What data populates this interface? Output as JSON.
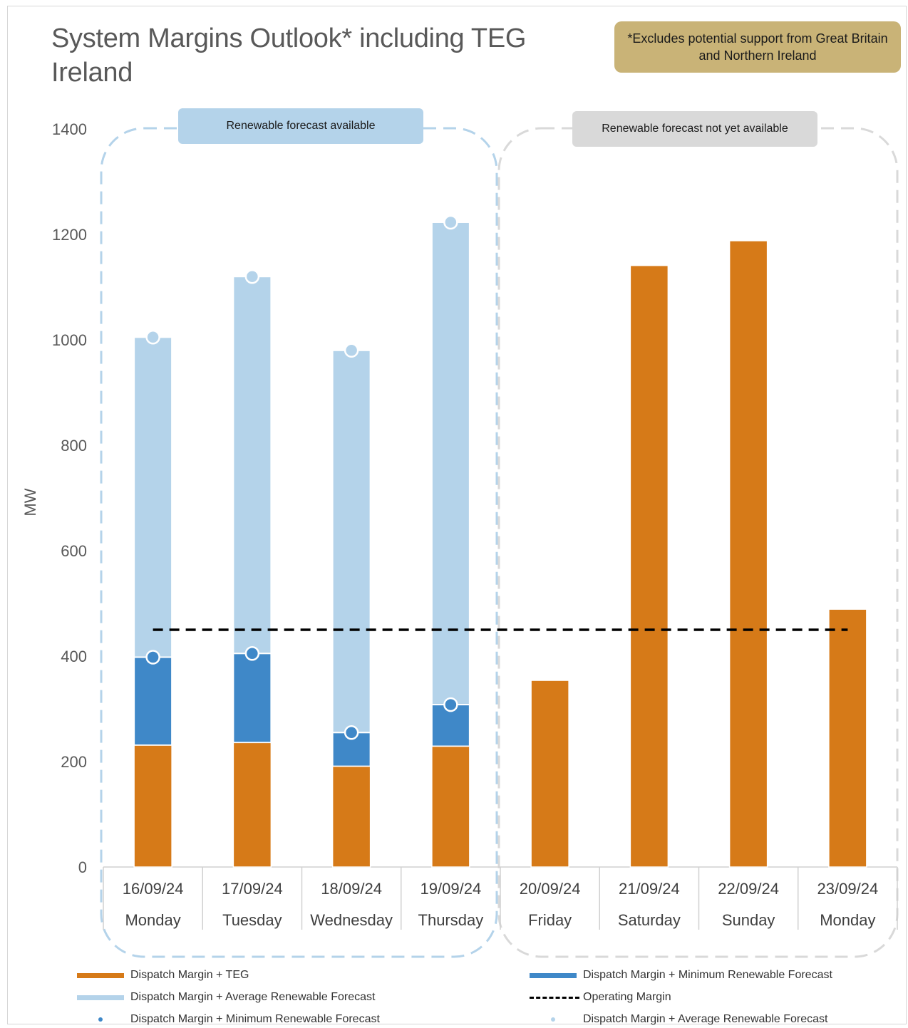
{
  "title": "System Margins Outlook* including TEG Ireland",
  "note": "*Excludes potential support from Great Britain and Northern Ireland",
  "group_labels": {
    "available": "Renewable forecast available",
    "not_available": "Renewable forecast not yet available"
  },
  "colors": {
    "teg": "#d67a18",
    "min_renewable": "#3f88c8",
    "avg_renewable": "#b4d3ea",
    "operating_margin": "#000000",
    "note_bg": "#c9b377"
  },
  "chart_data": {
    "type": "bar",
    "ylabel": "MW",
    "ylim": [
      0,
      1400
    ],
    "yticks": [
      0,
      200,
      400,
      600,
      800,
      1000,
      1200,
      1400
    ],
    "grid": false,
    "legend_position": "bottom",
    "categories": [
      {
        "date": "16/09/24",
        "day": "Monday"
      },
      {
        "date": "17/09/24",
        "day": "Tuesday"
      },
      {
        "date": "18/09/24",
        "day": "Wednesday"
      },
      {
        "date": "19/09/24",
        "day": "Thursday"
      },
      {
        "date": "20/09/24",
        "day": "Friday"
      },
      {
        "date": "21/09/24",
        "day": "Saturday"
      },
      {
        "date": "22/09/24",
        "day": "Sunday"
      },
      {
        "date": "23/09/24",
        "day": "Monday"
      }
    ],
    "series": [
      {
        "name": "Dispatch Margin + TEG",
        "values": [
          231,
          236,
          191,
          229,
          354,
          1141,
          1188,
          489
        ]
      },
      {
        "name": "Dispatch Margin + Minimum Renewable Forecast",
        "values": [
          398,
          405,
          255,
          308,
          null,
          null,
          null,
          null
        ]
      },
      {
        "name": "Dispatch Margin + Average Renewable Forecast",
        "values": [
          1005,
          1120,
          980,
          1223,
          null,
          null,
          null,
          null
        ]
      },
      {
        "name": "Operating Margin",
        "values": [
          450,
          450,
          450,
          450,
          450,
          450,
          450,
          450
        ]
      }
    ]
  },
  "legend": [
    {
      "label": "Dispatch Margin + TEG",
      "style": "teg"
    },
    {
      "label": "Dispatch Margin + Minimum Renewable Forecast",
      "style": "min_renewable"
    },
    {
      "label": "Dispatch Margin + Average Renewable Forecast",
      "style": "avg_renewable"
    },
    {
      "label": "Operating Margin",
      "style": "operating_margin"
    },
    {
      "label": "Dispatch Margin + Minimum Renewable Forecast",
      "style": "min_dot"
    },
    {
      "label": "Dispatch Margin + Average Renewable Forecast",
      "style": "avg_dot"
    }
  ]
}
